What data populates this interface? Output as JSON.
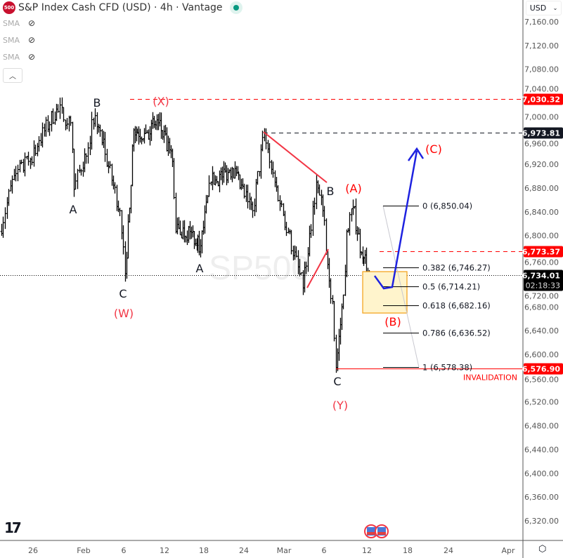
{
  "header": {
    "symbol_badge": "500",
    "title": "S&P Index Cash CFD (USD) · 4h · Vantage",
    "status_color": "#089981"
  },
  "indicators": [
    {
      "label": "SMA",
      "icon": "eye-off-icon"
    },
    {
      "label": "SMA",
      "icon": "eye-off-icon"
    },
    {
      "label": "SMA",
      "icon": "eye-off-icon"
    }
  ],
  "collapse_icon": "chevron-up-icon",
  "currency": {
    "label": "USD",
    "icon": "chevron-down-icon"
  },
  "watermark": "SP500",
  "chart_data": {
    "type": "ohlc",
    "timeframe": "4h",
    "ylim": [
      6290,
      7180
    ],
    "y_ticks": [
      7160,
      7120,
      7080,
      7040,
      7000,
      6960,
      6920,
      6880,
      6840,
      6800,
      6760,
      6720,
      6680,
      6640,
      6600,
      6560,
      6520,
      6480,
      6440,
      6400,
      6360,
      6320
    ],
    "x_ticks": [
      {
        "label": "26",
        "date": "01-26"
      },
      {
        "label": "Feb",
        "date": "02-01"
      },
      {
        "label": "6",
        "date": "02-06"
      },
      {
        "label": "12",
        "date": "02-12"
      },
      {
        "label": "18",
        "date": "02-18"
      },
      {
        "label": "24",
        "date": "02-24"
      },
      {
        "label": "Mar",
        "date": "03-01"
      },
      {
        "label": "6",
        "date": "03-06"
      },
      {
        "label": "12",
        "date": "03-12"
      },
      {
        "label": "18",
        "date": "03-18"
      },
      {
        "label": "24",
        "date": "03-24"
      },
      {
        "label": "Apr",
        "date": "04-01"
      }
    ],
    "swing_points": [
      [
        "01-22 00",
        6807
      ],
      [
        "01-23 18",
        6901
      ],
      [
        "01-25 10",
        6925
      ],
      [
        "01-26 16",
        6960
      ],
      [
        "01-28 18",
        7013
      ],
      [
        "01-30 10",
        6990
      ],
      [
        "01-30 20",
        6878
      ],
      [
        "02-01 02",
        6937
      ],
      [
        "02-02 10",
        7002
      ],
      [
        "02-03 16",
        6937
      ],
      [
        "02-05 12",
        6842
      ],
      [
        "02-06 04",
        6736
      ],
      [
        "02-07 10",
        6978
      ],
      [
        "02-09 00",
        6972
      ],
      [
        "02-11 02",
        6990
      ],
      [
        "02-13 04",
        6925
      ],
      [
        "02-13 16",
        6807
      ],
      [
        "02-15 20",
        6807
      ],
      [
        "02-17 12",
        6783
      ],
      [
        "02-19 00",
        6890
      ],
      [
        "02-22 04",
        6913
      ],
      [
        "02-25 02",
        6842
      ],
      [
        "02-26 12",
        6973
      ],
      [
        "02-27 20",
        6890
      ],
      [
        "03-01 12",
        6807
      ],
      [
        "03-03 08",
        6712
      ],
      [
        "03-05 00",
        6890
      ],
      [
        "03-05 20",
        6842
      ],
      [
        "03-06 16",
        6724
      ],
      [
        "03-07 04",
        6689
      ],
      [
        "03-07 16",
        6578
      ],
      [
        "03-08 16",
        6700
      ],
      [
        "03-09 04",
        6807
      ],
      [
        "03-10 00",
        6848
      ],
      [
        "03-11 04",
        6771
      ],
      [
        "03-12 08",
        6734
      ]
    ],
    "levels": [
      {
        "price": 7030.32,
        "label": "7,030.32",
        "color": "#ff0000",
        "style": "dashed"
      },
      {
        "price": 6973.81,
        "label": "6,973.81",
        "color": "#131722",
        "style": "dashed"
      },
      {
        "price": 6773.37,
        "label": "6,773.37",
        "color": "#ff0000",
        "style": "dashed"
      },
      {
        "price": 6734.01,
        "label": "6,734.01",
        "countdown": "02:18:33",
        "color": "#000000",
        "style": "dotted"
      },
      {
        "price": 6576.9,
        "label": "6,576.90",
        "color": "#ff0000",
        "style": "solid",
        "note": "INVALIDATION"
      }
    ],
    "fibonacci": [
      {
        "ratio": "0",
        "price": 6850.04,
        "label": "0 (6,850.04)"
      },
      {
        "ratio": "0.382",
        "price": 6746.27,
        "label": "0.382 (6,746.27)"
      },
      {
        "ratio": "0.5",
        "price": 6714.21,
        "label": "0.5 (6,714.21)"
      },
      {
        "ratio": "0.618",
        "price": 6682.16,
        "label": "0.618 (6,682.16)"
      },
      {
        "ratio": "0.786",
        "price": 6636.52,
        "label": "0.786 (6,636.52)"
      },
      {
        "ratio": "1",
        "price": 6578.38,
        "label": "1 (6,578.38)"
      }
    ],
    "wave_labels": [
      {
        "text": "B",
        "color": "#131722"
      },
      {
        "text": "A",
        "color": "#131722"
      },
      {
        "text": "C",
        "color": "#131722"
      },
      {
        "text": "(W)",
        "color": "#f23645"
      },
      {
        "text": "(X)",
        "color": "#f23645"
      },
      {
        "text": "A",
        "color": "#131722"
      },
      {
        "text": "B",
        "color": "#131722"
      },
      {
        "text": "C",
        "color": "#131722"
      },
      {
        "text": "(Y)",
        "color": "#f23645"
      },
      {
        "text": "(A)",
        "color": "#ff0000"
      },
      {
        "text": "(B)",
        "color": "#ff0000"
      },
      {
        "text": "(C)",
        "color": "#ff0000"
      }
    ],
    "projection_color": "#1e22e0",
    "zone_color": "#fff4cc"
  }
}
